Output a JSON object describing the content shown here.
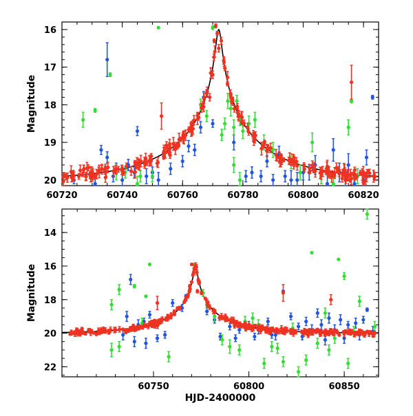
{
  "chart_data": [
    {
      "type": "scatter",
      "ylabel": "Magnitude",
      "xlabel": "",
      "xlim": [
        60720,
        60825
      ],
      "ylim": [
        20.15,
        15.8
      ],
      "y_inverted": true,
      "xticks": [
        60720,
        60740,
        60760,
        60780,
        60800,
        60820
      ],
      "yticks": [
        16,
        17,
        18,
        19,
        20
      ],
      "model": {
        "t0": 60772,
        "baseline": 20.0,
        "peak": 16.0,
        "u0": 0.03,
        "tE": 30
      },
      "series": [
        {
          "color": "#2255dd",
          "points": [
            [
              60735,
              16.8,
              0.45
            ],
            [
              60745,
              18.7,
              0.12
            ],
            [
              60762,
              19.1,
              0.15
            ],
            [
              60764,
              19.2,
              0.15
            ],
            [
              60766,
              18.6,
              0.15
            ],
            [
              60767,
              17.8,
              0.15
            ],
            [
              60768,
              17.7,
              0.1
            ],
            [
              60770,
              18.5,
              0.1
            ],
            [
              60733,
              19.2,
              0.12
            ],
            [
              60735,
              19.4,
              0.15
            ],
            [
              60738,
              19.7,
              0.15
            ],
            [
              60742,
              19.6,
              0.15
            ],
            [
              60748,
              19.9,
              0.2
            ],
            [
              60752,
              20.0,
              0.2
            ],
            [
              60777,
              19.0,
              0.2
            ],
            [
              60781,
              19.9,
              0.15
            ],
            [
              60788,
              19.5,
              0.15
            ],
            [
              60792,
              19.3,
              0.2
            ],
            [
              60796,
              20.0,
              0.25
            ],
            [
              60800,
              19.8,
              0.2
            ],
            [
              60804,
              19.6,
              0.25
            ],
            [
              60808,
              20.1,
              0.3
            ],
            [
              60810,
              19.2,
              0.3
            ],
            [
              60812,
              19.8,
              0.25
            ],
            [
              60815,
              19.6,
              0.3
            ],
            [
              60818,
              19.9,
              0.2
            ],
            [
              60821,
              19.4,
              0.2
            ],
            [
              60823,
              17.8,
              0.05
            ],
            [
              60724,
              20.0,
              0.1
            ],
            [
              60728,
              19.9,
              0.1
            ],
            [
              60731,
              20.1,
              0.15
            ],
            [
              60737,
              19.9,
              0.15
            ],
            [
              60740,
              20.0,
              0.15
            ],
            [
              60744,
              19.8,
              0.15
            ],
            [
              60750,
              19.8,
              0.15
            ],
            [
              60756,
              19.7,
              0.15
            ],
            [
              60760,
              19.5,
              0.15
            ],
            [
              60783,
              19.8,
              0.15
            ],
            [
              60786,
              19.9,
              0.15
            ],
            [
              60790,
              20.0,
              0.15
            ],
            [
              60794,
              19.9,
              0.15
            ],
            [
              60798,
              20.0,
              0.2
            ],
            [
              60802,
              19.8,
              0.2
            ],
            [
              60806,
              19.9,
              0.2
            ],
            [
              60814,
              20.0,
              0.2
            ],
            [
              60817,
              20.1,
              0.2
            ],
            [
              60820,
              20.0,
              0.2
            ]
          ]
        },
        {
          "color": "#33dd33",
          "points": [
            [
              60727,
              18.4,
              0.2
            ],
            [
              60731,
              18.15,
              0.05
            ],
            [
              60736,
              17.2,
              0.05
            ],
            [
              60752,
              15.95,
              0.03
            ],
            [
              60741,
              19.8,
              0.15
            ],
            [
              60746,
              19.9,
              0.15
            ],
            [
              60750,
              19.9,
              0.15
            ],
            [
              60766,
              18.0,
              0.15
            ],
            [
              60768,
              18.3,
              0.15
            ],
            [
              60770,
              15.95,
              0.05
            ],
            [
              60773,
              18.8,
              0.15
            ],
            [
              60774,
              18.5,
              0.15
            ],
            [
              60775,
              17.9,
              0.2
            ],
            [
              60776,
              18.1,
              0.2
            ],
            [
              60777,
              18.6,
              0.2
            ],
            [
              60778,
              17.9,
              0.15
            ],
            [
              60779,
              18.4,
              0.15
            ],
            [
              60780,
              18.7,
              0.2
            ],
            [
              60782,
              18.5,
              0.2
            ],
            [
              60784,
              18.4,
              0.2
            ],
            [
              60787,
              19.0,
              0.2
            ],
            [
              60790,
              19.2,
              0.2
            ],
            [
              60796,
              19.5,
              0.2
            ],
            [
              60799,
              19.8,
              0.2
            ],
            [
              60803,
              19.0,
              0.25
            ],
            [
              60806,
              19.9,
              0.2
            ],
            [
              60810,
              20.1,
              0.2
            ],
            [
              60815,
              18.6,
              0.2
            ],
            [
              60816,
              17.9,
              0.05
            ],
            [
              60818,
              19.9,
              0.2
            ],
            [
              60777,
              19.6,
              0.2
            ],
            [
              60779,
              20.0,
              0.2
            ],
            [
              60745,
              20.1,
              0.2
            ],
            [
              60738,
              19.8,
              0.2
            ]
          ]
        },
        {
          "color": "#ee3322",
          "points": [
            [
              60753,
              18.3,
              0.35
            ],
            [
              60816,
              17.4,
              0.45
            ],
            [
              60771,
              15.9,
              0.05
            ],
            [
              60771.5,
              16.1,
              0.05
            ],
            [
              60770.5,
              16.3,
              0.05
            ],
            [
              60772,
              16.5,
              0.1
            ],
            [
              60769,
              17.8,
              0.1
            ],
            [
              60770,
              17.2,
              0.1
            ]
          ],
          "scatter_band": {
            "from": 60720,
            "to": 60825,
            "count": 230,
            "jitter": 0.15
          }
        }
      ]
    },
    {
      "type": "scatter",
      "ylabel": "Magnitude",
      "xlabel": "HJD-2400000",
      "xlim": [
        60702,
        60868
      ],
      "ylim": [
        22.6,
        12.6
      ],
      "y_inverted": true,
      "xticks": [
        60750,
        60800,
        60850
      ],
      "yticks": [
        14,
        16,
        18,
        20,
        22
      ],
      "model": {
        "t0": 60772,
        "baseline": 20.0,
        "peak": 16.0,
        "u0": 0.03,
        "tE": 30
      },
      "series": [
        {
          "color": "#2255dd",
          "points": [
            [
              60738,
              16.8,
              0.3
            ],
            [
              60736,
              19.0,
              0.3
            ],
            [
              60742,
              19.5,
              0.3
            ],
            [
              60745,
              19.3,
              0.2
            ],
            [
              60748,
              18.9,
              0.2
            ],
            [
              60760,
              18.2,
              0.2
            ],
            [
              60765,
              18.5,
              0.2
            ],
            [
              60767,
              17.8,
              0.1
            ],
            [
              60778,
              18.7,
              0.2
            ],
            [
              60782,
              19.2,
              0.2
            ],
            [
              60790,
              19.6,
              0.2
            ],
            [
              60795,
              19.8,
              0.2
            ],
            [
              60800,
              19.5,
              0.2
            ],
            [
              60805,
              19.8,
              0.25
            ],
            [
              60810,
              19.3,
              0.2
            ],
            [
              60814,
              20.1,
              0.3
            ],
            [
              60818,
              17.5,
              0.05
            ],
            [
              60822,
              19.0,
              0.2
            ],
            [
              60826,
              19.6,
              0.2
            ],
            [
              60830,
              19.3,
              0.25
            ],
            [
              60833,
              19.8,
              0.3
            ],
            [
              60836,
              18.8,
              0.25
            ],
            [
              60838,
              19.5,
              0.3
            ],
            [
              60842,
              19.1,
              0.3
            ],
            [
              60845,
              19.8,
              0.3
            ],
            [
              60848,
              19.2,
              0.3
            ],
            [
              60852,
              19.5,
              0.2
            ],
            [
              60856,
              19.4,
              0.3
            ],
            [
              60860,
              19.2,
              0.2
            ],
            [
              60862,
              18.6,
              0.1
            ],
            [
              60865,
              19.9,
              0.3
            ],
            [
              60734,
              20.1,
              0.3
            ],
            [
              60740,
              20.5,
              0.3
            ],
            [
              60746,
              20.6,
              0.3
            ],
            [
              60752,
              20.3,
              0.2
            ],
            [
              60756,
              20.1,
              0.2
            ],
            [
              60785,
              20.2,
              0.2
            ],
            [
              60793,
              20.3,
              0.2
            ],
            [
              60803,
              20.2,
              0.2
            ],
            [
              60812,
              20.1,
              0.2
            ],
            [
              60828,
              20.2,
              0.2
            ],
            [
              60840,
              20.4,
              0.3
            ],
            [
              60850,
              20.3,
              0.3
            ],
            [
              60858,
              20.1,
              0.3
            ]
          ]
        },
        {
          "color": "#33dd33",
          "points": [
            [
              60728,
              18.3,
              0.3
            ],
            [
              60732,
              17.4,
              0.3
            ],
            [
              60740,
              17.2,
              0.1
            ],
            [
              60744,
              19.4,
              0.3
            ],
            [
              60746,
              17.8,
              0.05
            ],
            [
              60748,
              15.9,
              0.05
            ],
            [
              60758,
              21.4,
              0.3
            ],
            [
              60728,
              21.0,
              0.4
            ],
            [
              60732,
              20.8,
              0.3
            ],
            [
              60771,
              15.9,
              0.05
            ],
            [
              60776,
              17.6,
              0.2
            ],
            [
              60778,
              18.3,
              0.2
            ],
            [
              60782,
              19.0,
              0.3
            ],
            [
              60786,
              20.4,
              0.3
            ],
            [
              60790,
              20.8,
              0.4
            ],
            [
              60795,
              21.0,
              0.3
            ],
            [
              60798,
              19.3,
              0.3
            ],
            [
              60802,
              19.1,
              0.3
            ],
            [
              60805,
              19.5,
              0.3
            ],
            [
              60808,
              21.8,
              0.3
            ],
            [
              60812,
              20.8,
              0.3
            ],
            [
              60815,
              20.9,
              0.3
            ],
            [
              60818,
              21.7,
              0.3
            ],
            [
              60823,
              19.7,
              0.3
            ],
            [
              60826,
              22.3,
              0.3
            ],
            [
              60830,
              21.6,
              0.3
            ],
            [
              60833,
              15.2,
              0.05
            ],
            [
              60836,
              20.6,
              0.3
            ],
            [
              60840,
              18.8,
              0.3
            ],
            [
              60842,
              21.0,
              0.3
            ],
            [
              60845,
              20.3,
              0.3
            ],
            [
              60847,
              15.6,
              0.05
            ],
            [
              60850,
              16.6,
              0.2
            ],
            [
              60852,
              21.8,
              0.3
            ],
            [
              60855,
              19.9,
              0.3
            ],
            [
              60858,
              18.1,
              0.3
            ],
            [
              60862,
              12.9,
              0.3
            ],
            [
              60866,
              19.6,
              0.3
            ]
          ]
        },
        {
          "color": "#ee3322",
          "points": [
            [
              60752,
              18.2,
              0.4
            ],
            [
              60818,
              17.6,
              0.5
            ],
            [
              60843,
              18.0,
              0.3
            ],
            [
              60770,
              15.9,
              0.05
            ],
            [
              60771,
              16.4,
              0.1
            ],
            [
              60769,
              17.2,
              0.1
            ],
            [
              60768,
              17.8,
              0.1
            ],
            [
              60773,
              17.5,
              0.1
            ]
          ],
          "scatter_band": {
            "from": 60706,
            "to": 60866,
            "count": 320,
            "jitter": 0.15
          }
        }
      ]
    }
  ]
}
